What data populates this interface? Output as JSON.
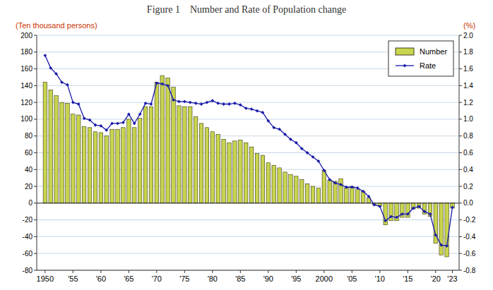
{
  "chart_data": {
    "type": "bar",
    "title": "Figure 1    Number and Rate of Population change",
    "ylabel": "(Ten thousand persons)",
    "y2label": "(%)",
    "x": [
      1950,
      1951,
      1952,
      1953,
      1954,
      1955,
      1956,
      1957,
      1958,
      1959,
      1960,
      1961,
      1962,
      1963,
      1964,
      1965,
      1966,
      1967,
      1968,
      1969,
      1970,
      1971,
      1972,
      1973,
      1974,
      1975,
      1976,
      1977,
      1978,
      1979,
      1980,
      1981,
      1982,
      1983,
      1984,
      1985,
      1986,
      1987,
      1988,
      1989,
      1990,
      1991,
      1992,
      1993,
      1994,
      1995,
      1996,
      1997,
      1998,
      1999,
      2000,
      2001,
      2002,
      2003,
      2004,
      2005,
      2006,
      2007,
      2008,
      2009,
      2010,
      2011,
      2012,
      2013,
      2014,
      2015,
      2016,
      2017,
      2018,
      2019,
      2020,
      2021,
      2022,
      2023
    ],
    "series": [
      {
        "name": "Number",
        "type": "bar",
        "color": "#c8d44e",
        "values": [
          144,
          135,
          128,
          120,
          119,
          106,
          105,
          91,
          90,
          85,
          84,
          80,
          88,
          88,
          90,
          100,
          90,
          101,
          115,
          115,
          144,
          152,
          149,
          138,
          116,
          115,
          115,
          103,
          95,
          90,
          85,
          82,
          76,
          72,
          74,
          75,
          72,
          67,
          59,
          57,
          48,
          45,
          42,
          37,
          34,
          32,
          28,
          23,
          20,
          18,
          39,
          27,
          26,
          29,
          18,
          20,
          16,
          14,
          6,
          -2,
          -4,
          -26,
          -21,
          -21,
          -17,
          -17,
          -7,
          -6,
          -13,
          -16,
          -48,
          -62,
          -64,
          -6
        ]
      },
      {
        "name": "Rate",
        "type": "line",
        "axis": "y2",
        "color": "#1a1aaa",
        "marker": "diamond",
        "values": [
          1.76,
          1.61,
          1.54,
          1.44,
          1.41,
          1.2,
          1.18,
          1.01,
          0.99,
          0.93,
          0.92,
          0.87,
          0.95,
          0.95,
          0.96,
          1.06,
          0.95,
          1.06,
          1.19,
          1.18,
          1.43,
          1.42,
          1.4,
          1.23,
          1.21,
          1.21,
          1.2,
          1.19,
          1.18,
          1.2,
          1.22,
          1.19,
          1.18,
          1.18,
          1.19,
          1.17,
          1.13,
          1.12,
          1.1,
          1.08,
          0.98,
          0.9,
          0.88,
          0.82,
          0.76,
          0.72,
          0.65,
          0.6,
          0.55,
          0.5,
          0.39,
          0.28,
          0.24,
          0.22,
          0.19,
          0.19,
          0.18,
          0.14,
          0.08,
          -0.02,
          -0.04,
          -0.21,
          -0.16,
          -0.17,
          -0.13,
          -0.13,
          -0.06,
          -0.04,
          -0.1,
          -0.13,
          -0.38,
          -0.5,
          -0.51,
          -0.05
        ]
      }
    ],
    "xlim": [
      1948.5,
      2024.2
    ],
    "xticks": [
      1950,
      {
        "value": 1955,
        "label": "'55"
      },
      {
        "value": 1960,
        "label": "'60"
      },
      {
        "value": 1965,
        "label": "'65"
      },
      {
        "value": 1970,
        "label": "'70"
      },
      {
        "value": 1975,
        "label": "'75"
      },
      {
        "value": 1980,
        "label": "'80"
      },
      {
        "value": 1985,
        "label": "'85"
      },
      {
        "value": 1990,
        "label": "'90"
      },
      {
        "value": 1995,
        "label": "'95"
      },
      2000,
      {
        "value": 2005,
        "label": "'05"
      },
      {
        "value": 2010,
        "label": "'10"
      },
      {
        "value": 2015,
        "label": "'15"
      },
      {
        "value": 2020,
        "label": "'20"
      },
      {
        "value": 2023,
        "label": "'23"
      }
    ],
    "ylim": [
      -80,
      200
    ],
    "yticks": [
      -80,
      -60,
      -40,
      -20,
      0,
      20,
      40,
      60,
      80,
      100,
      120,
      140,
      160,
      180,
      200
    ],
    "y2lim": [
      -0.8,
      2.0
    ],
    "y2ticks": [
      -0.8,
      -0.6,
      -0.4,
      -0.2,
      {
        "value": 0,
        "label": "0.0"
      },
      0.2,
      0.4,
      0.6,
      0.8,
      {
        "value": 1,
        "label": "1.0"
      },
      1.2,
      1.4,
      1.6,
      1.8,
      {
        "value": 2,
        "label": "2.0"
      }
    ],
    "grid": true,
    "legend": "upper right"
  }
}
